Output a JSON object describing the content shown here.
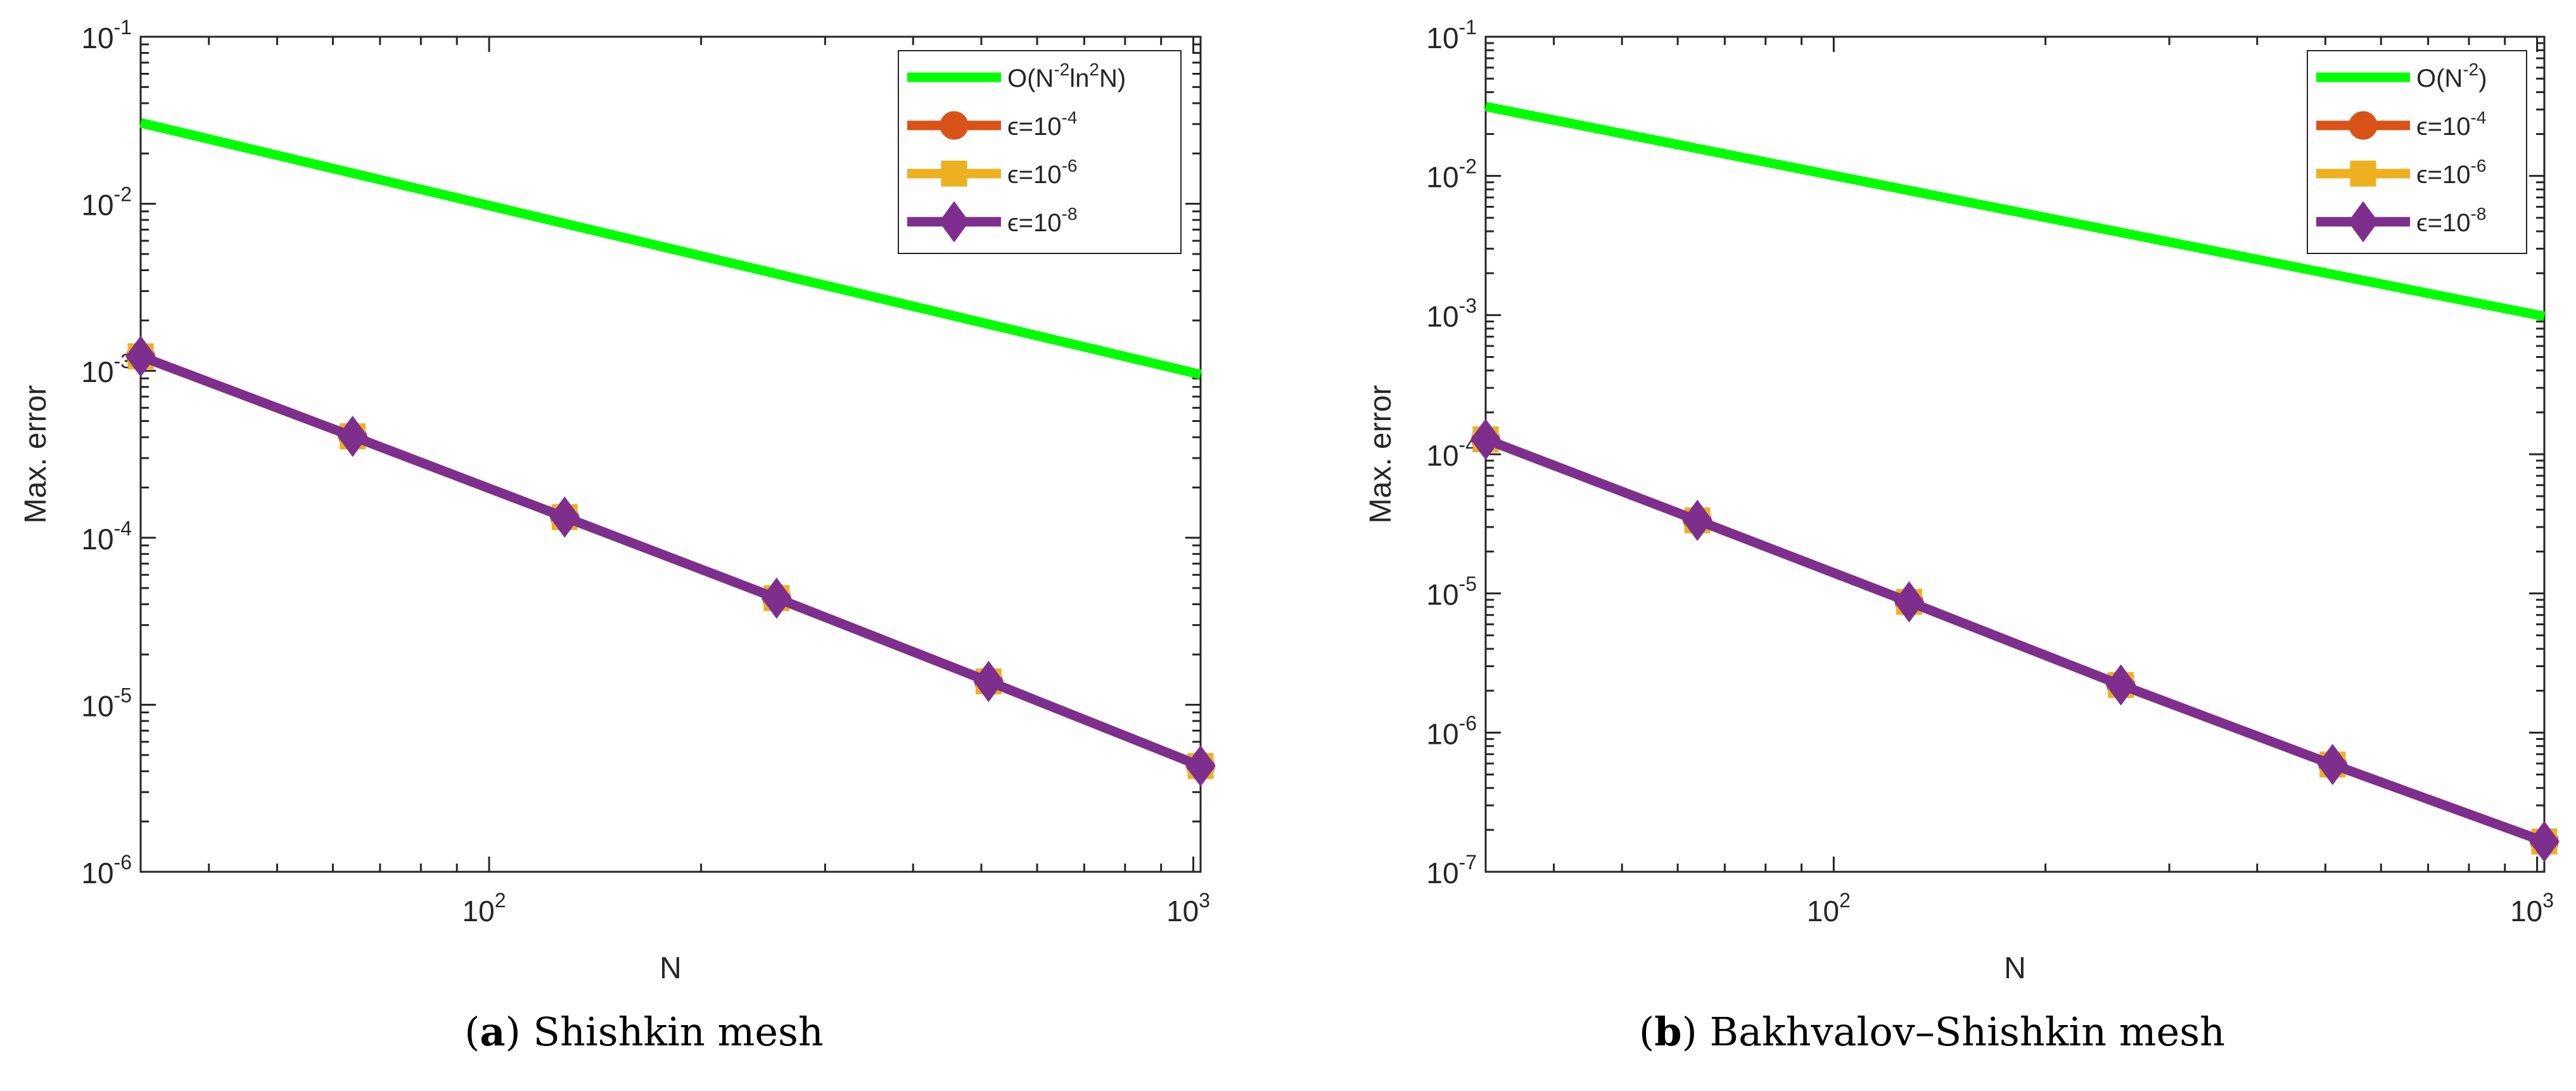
{
  "colors": {
    "ref_line": "#00ff00",
    "eps4": "#d95319",
    "eps6": "#edb120",
    "eps8": "#7e2f8e",
    "axis": "#262626"
  },
  "captions": [
    {
      "letter": "a",
      "open": "(",
      "close": ")",
      "text": " Shishkin mesh"
    },
    {
      "letter": "b",
      "open": "(",
      "close": ")",
      "text": " Bakhvalov–Shishkin mesh"
    }
  ],
  "chart_data": [
    {
      "type": "line",
      "xscale": "log",
      "yscale": "log",
      "xlabel": "N",
      "ylabel": "Max. error",
      "xlim": [
        32,
        1024
      ],
      "ylim_exp": [
        -6,
        -1
      ],
      "xticks": [
        {
          "value": 100,
          "base": "10",
          "exp": "2"
        },
        {
          "value": 1000,
          "base": "10",
          "exp": "3"
        }
      ],
      "yticks": [
        {
          "exp": -6,
          "base": "10",
          "label": "-6"
        },
        {
          "exp": -5,
          "base": "10",
          "label": "-5"
        },
        {
          "exp": -4,
          "base": "10",
          "label": "-4"
        },
        {
          "exp": -3,
          "base": "10",
          "label": "-3"
        },
        {
          "exp": -2,
          "base": "10",
          "label": "-2"
        },
        {
          "exp": -1,
          "base": "10",
          "label": "-1"
        }
      ],
      "legend_position": "top-right",
      "series": [
        {
          "name": "reference",
          "legend": [
            {
              "t": "O(N"
            },
            {
              "t": "-2",
              "sup": true
            },
            {
              "t": "ln"
            },
            {
              "t": "2",
              "sup": true
            },
            {
              "t": "N)"
            }
          ],
          "color_key": "ref_line",
          "marker": "none",
          "x": [
            32,
            1024
          ],
          "y": [
            0.0305,
            0.00095
          ]
        },
        {
          "name": "eps=1e-4",
          "legend": [
            {
              "t": "ϵ=10"
            },
            {
              "t": "-4",
              "sup": true
            }
          ],
          "color_key": "eps4",
          "marker": "circle",
          "x": [
            32,
            64,
            128,
            256,
            512,
            1024
          ],
          "y": [
            0.00122,
            0.000405,
            0.000133,
            4.35e-05,
            1.38e-05,
            4.3e-06
          ]
        },
        {
          "name": "eps=1e-6",
          "legend": [
            {
              "t": "ϵ=10"
            },
            {
              "t": "-6",
              "sup": true
            }
          ],
          "color_key": "eps6",
          "marker": "square",
          "x": [
            32,
            64,
            128,
            256,
            512,
            1024
          ],
          "y": [
            0.00122,
            0.000405,
            0.000133,
            4.35e-05,
            1.38e-05,
            4.3e-06
          ]
        },
        {
          "name": "eps=1e-8",
          "legend": [
            {
              "t": "ϵ=10"
            },
            {
              "t": "-8",
              "sup": true
            }
          ],
          "color_key": "eps8",
          "marker": "diamond",
          "x": [
            32,
            64,
            128,
            256,
            512,
            1024
          ],
          "y": [
            0.00122,
            0.000405,
            0.000133,
            4.35e-05,
            1.38e-05,
            4.3e-06
          ]
        }
      ]
    },
    {
      "type": "line",
      "xscale": "log",
      "yscale": "log",
      "xlabel": "N",
      "ylabel": "Max. error",
      "xlim": [
        32,
        1024
      ],
      "ylim_exp": [
        -7,
        -1
      ],
      "xticks": [
        {
          "value": 100,
          "base": "10",
          "exp": "2"
        },
        {
          "value": 1000,
          "base": "10",
          "exp": "3"
        }
      ],
      "yticks": [
        {
          "exp": -7,
          "base": "10",
          "label": "-7"
        },
        {
          "exp": -6,
          "base": "10",
          "label": "-6"
        },
        {
          "exp": -5,
          "base": "10",
          "label": "-5"
        },
        {
          "exp": -4,
          "base": "10",
          "label": "-4"
        },
        {
          "exp": -3,
          "base": "10",
          "label": "-3"
        },
        {
          "exp": -2,
          "base": "10",
          "label": "-2"
        },
        {
          "exp": -1,
          "base": "10",
          "label": "-1"
        }
      ],
      "legend_position": "top-right",
      "series": [
        {
          "name": "reference",
          "legend": [
            {
              "t": "O(N"
            },
            {
              "t": "-2",
              "sup": true
            },
            {
              "t": ")"
            }
          ],
          "color_key": "ref_line",
          "marker": "none",
          "x": [
            32,
            1024
          ],
          "y": [
            0.0315,
            0.00098
          ]
        },
        {
          "name": "eps=1e-4",
          "legend": [
            {
              "t": "ϵ=10"
            },
            {
              "t": "-4",
              "sup": true
            }
          ],
          "color_key": "eps4",
          "marker": "circle",
          "x": [
            32,
            64,
            128,
            256,
            512,
            1024
          ],
          "y": [
            0.000128,
            3.35e-05,
            8.7e-06,
            2.2e-06,
            5.9e-07,
            1.65e-07
          ]
        },
        {
          "name": "eps=1e-6",
          "legend": [
            {
              "t": "ϵ=10"
            },
            {
              "t": "-6",
              "sup": true
            }
          ],
          "color_key": "eps6",
          "marker": "square",
          "x": [
            32,
            64,
            128,
            256,
            512,
            1024
          ],
          "y": [
            0.000128,
            3.35e-05,
            8.7e-06,
            2.2e-06,
            5.9e-07,
            1.65e-07
          ]
        },
        {
          "name": "eps=1e-8",
          "legend": [
            {
              "t": "ϵ=10"
            },
            {
              "t": "-8",
              "sup": true
            }
          ],
          "color_key": "eps8",
          "marker": "diamond",
          "x": [
            32,
            64,
            128,
            256,
            512,
            1024
          ],
          "y": [
            0.000128,
            3.35e-05,
            8.7e-06,
            2.2e-06,
            5.9e-07,
            1.65e-07
          ]
        }
      ]
    }
  ]
}
